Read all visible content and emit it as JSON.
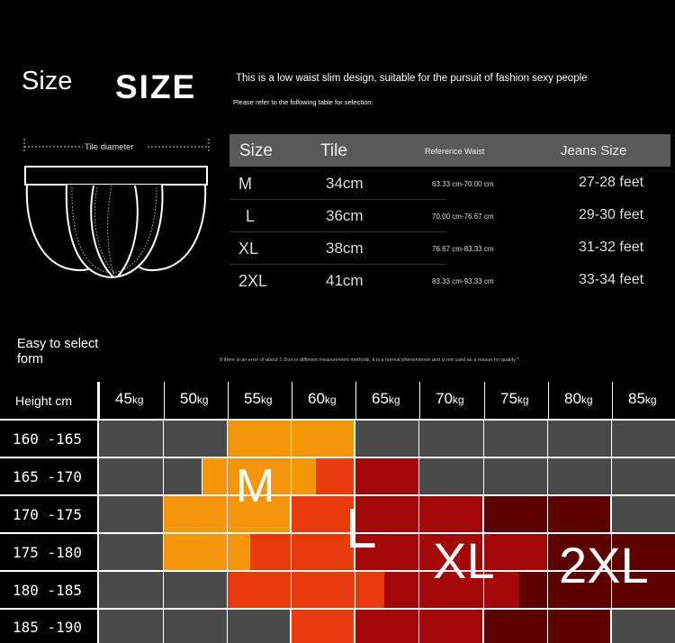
{
  "header": {
    "size_word": "Size",
    "size_caps": "SIZE",
    "intro": "This is a low waist slim design, suitable for the pursuit of fashion sexy people",
    "note": "Please refer to the following table for selection:"
  },
  "diagram": {
    "tile_label": "Tile diameter"
  },
  "size_table": {
    "headers": [
      "Size",
      "Tile",
      "Reference Waist",
      "Jeans Size"
    ],
    "rows": [
      {
        "size": "M",
        "tile": "34cm",
        "waist": "63.33 cm-70.00 cm",
        "jeans": "27-28 feet"
      },
      {
        "size": "L",
        "tile": "36cm",
        "waist": "70.00 cm-76.67 cm",
        "jeans": "29-30 feet"
      },
      {
        "size": "XL",
        "tile": "38cm",
        "waist": "76.67 cm-83.33 cm",
        "jeans": "31-32 feet"
      },
      {
        "size": "2XL",
        "tile": "41cm",
        "waist": "83.33 cm-93.33 cm",
        "jeans": "33-34 feet"
      }
    ]
  },
  "easy_label": "Easy to select form",
  "fine_print": "If there is an error of about 1-2cm in different measurement methods, it is a normal phenomenon and is not used as a reason for quality *.",
  "chart": {
    "height_header": "Height cm",
    "weights": [
      "45",
      "50",
      "55",
      "60",
      "65",
      "70",
      "75",
      "80",
      "85"
    ],
    "weight_unit": "kg",
    "heights": [
      "160 -165",
      "165 -170",
      "170 -175",
      "175 -180",
      "180 -185",
      "185 -190"
    ],
    "size_labels": [
      "M",
      "L",
      "XL",
      "2XL"
    ],
    "colors": {
      "none": "#4a4a4a",
      "M": "#f5960a",
      "L": "#e83a0a",
      "XL": "#a30808",
      "2XL": "#5c0000"
    }
  }
}
